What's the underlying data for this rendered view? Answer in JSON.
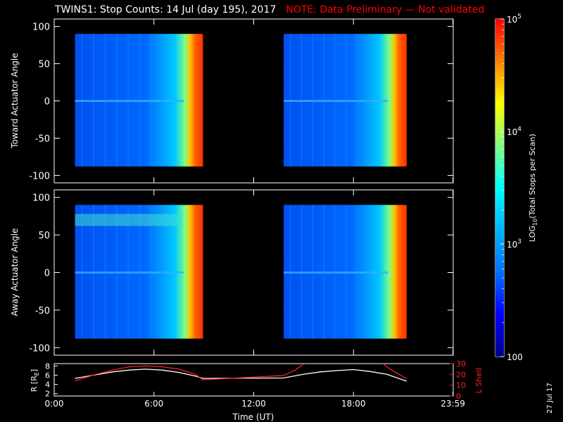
{
  "header": {
    "title": "TWINS1: Stop Counts: 14 Jul (day 195), 2017",
    "note": "NOTE: Data Preliminary — Not validated"
  },
  "footer": {
    "date_stamp": "27 Jul 17"
  },
  "colors": {
    "note": "#ff0000",
    "orbit_r": "#ffffff",
    "orbit_lshell": "#ff2020",
    "background": "#000000",
    "colormap": [
      "#00008c",
      "#0000ff",
      "#0070ff",
      "#00b4ff",
      "#00ffff",
      "#80ff80",
      "#ffff00",
      "#ff8000",
      "#ff0000"
    ]
  },
  "chart_data": [
    {
      "type": "heatmap",
      "name": "toward",
      "ylabel": "Toward Actuator Angle",
      "ylim": [
        -110,
        110
      ],
      "yticks": [
        100,
        50,
        0,
        -50,
        -100
      ],
      "xlim": [
        0,
        24
      ],
      "data_blocks": [
        {
          "x_start": 1.25,
          "x_end": 8.95,
          "y_start": -88,
          "y_end": 90
        },
        {
          "x_start": 13.8,
          "x_end": 21.2,
          "y_start": -88,
          "y_end": 90
        }
      ]
    },
    {
      "type": "heatmap",
      "name": "away",
      "ylabel": "Away Actuator Angle",
      "ylim": [
        -110,
        110
      ],
      "yticks": [
        100,
        50,
        0,
        -50,
        -100
      ],
      "xlim": [
        0,
        24
      ],
      "data_blocks": [
        {
          "x_start": 1.25,
          "x_end": 8.95,
          "y_start": -88,
          "y_end": 90
        },
        {
          "x_start": 13.8,
          "x_end": 21.2,
          "y_start": -88,
          "y_end": 90
        }
      ]
    },
    {
      "type": "line",
      "name": "orbit",
      "ylabel": "R [R",
      "ylabel_sub": "E",
      "ylabel_end": "]",
      "ylim": [
        1.5,
        8.5
      ],
      "yticks": [
        8,
        6,
        4,
        2
      ],
      "y2label": "L Shell",
      "y2lim": [
        0,
        30
      ],
      "y2ticks": [
        30,
        20,
        10,
        0
      ],
      "xlabel": "Time (UT)",
      "xlim": [
        0,
        24
      ],
      "xticks": [
        0,
        6,
        12,
        18,
        23.983
      ],
      "xticklabels": [
        "0:00",
        "6:00",
        "12:00",
        "18:00",
        "23:59"
      ],
      "series": [
        {
          "axis": "left",
          "x": [
            1.25,
            2.5,
            3.5,
            4.5,
            5.5,
            6.5,
            7.5,
            8.5,
            8.95,
            13.8,
            15,
            16,
            17,
            18,
            19,
            20,
            21.2
          ],
          "y": [
            5.3,
            6.1,
            6.7,
            7.1,
            7.3,
            7.1,
            6.6,
            5.8,
            5.3,
            5.4,
            6.2,
            6.7,
            7.0,
            7.2,
            6.8,
            6.2,
            4.7
          ]
        },
        {
          "axis": "right",
          "x": [
            1.25,
            2.5,
            3.5,
            4.5,
            5.5,
            6.5,
            7.5,
            8.5,
            8.95,
            13.8,
            14.5,
            15.2,
            19.6,
            20.2,
            21.2
          ],
          "y": [
            14,
            20,
            24,
            27,
            28,
            27,
            25,
            20,
            15,
            19,
            24,
            32,
            32,
            25,
            16
          ]
        }
      ]
    },
    {
      "type": "heatmap",
      "name": "colorbar",
      "scale": "log",
      "label": "LOG",
      "label_sub": "10",
      "label_end": "(Total Stops per Scan)",
      "range": [
        100,
        100000
      ],
      "ticks": [
        {
          "value": 100000,
          "base": "10",
          "exp": "5"
        },
        {
          "value": 10000,
          "base": "10",
          "exp": "4"
        },
        {
          "value": 1000,
          "base": "10",
          "exp": "3"
        },
        {
          "value": 100,
          "base": "100",
          "exp": ""
        }
      ]
    }
  ]
}
